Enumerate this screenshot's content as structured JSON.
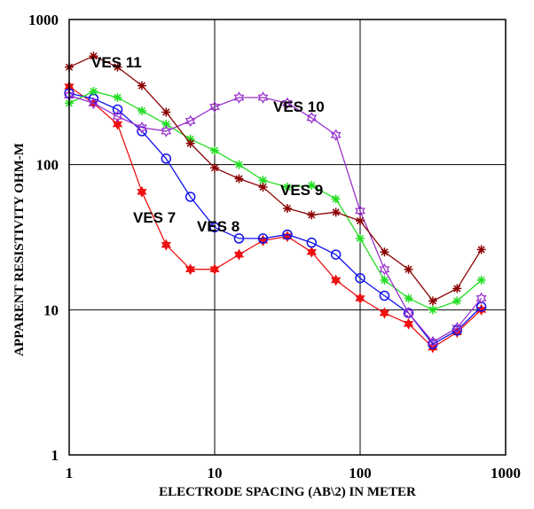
{
  "chart_data": {
    "type": "line",
    "xlabel": "ELECTRODE SPACING (AB\\2) IN METER",
    "ylabel": "APPARENT RESISTIVITY OHM-M",
    "xscale": "log",
    "yscale": "log",
    "xlim": [
      1,
      1000
    ],
    "ylim": [
      1,
      1000
    ],
    "grid": true,
    "x_ticks": [
      "1",
      "10",
      "100",
      "1000"
    ],
    "y_ticks": [
      "1",
      "10",
      "100",
      "1000"
    ],
    "series": [
      {
        "name": "VES 7",
        "color": "#ee1111",
        "marker": "star6",
        "x": [
          1,
          1.47,
          2.15,
          3.16,
          4.64,
          6.81,
          10,
          14.7,
          21.5,
          31.6,
          46.4,
          68.1,
          100,
          147,
          215,
          316,
          464,
          681
        ],
        "y": [
          345,
          265,
          190,
          65,
          28,
          19,
          19,
          24,
          30,
          32,
          25,
          16,
          12,
          9.5,
          8,
          5.5,
          7,
          10
        ]
      },
      {
        "name": "VES 8",
        "color": "#1111ee",
        "marker": "circle",
        "x": [
          1,
          1.47,
          2.15,
          3.16,
          4.64,
          6.81,
          10,
          14.7,
          21.5,
          31.6,
          46.4,
          68.1,
          100,
          147,
          215,
          316,
          464,
          681
        ],
        "y": [
          310,
          285,
          240,
          170,
          110,
          60,
          37,
          31,
          31,
          33,
          29,
          24,
          16.5,
          12.5,
          9.5,
          5.8,
          7.2,
          10.5
        ]
      },
      {
        "name": "VES 9",
        "color": "#22dd22",
        "marker": "asterisk",
        "x": [
          1,
          1.47,
          2.15,
          3.16,
          4.64,
          6.81,
          10,
          14.7,
          21.5,
          31.6,
          46.4,
          68.1,
          100,
          147,
          215,
          316,
          464,
          681
        ],
        "y": [
          265,
          320,
          290,
          235,
          190,
          150,
          125,
          100,
          78,
          70,
          72,
          58,
          31,
          16,
          12,
          10,
          11.5,
          16
        ]
      },
      {
        "name": "VES 10",
        "color": "#9933cc",
        "marker": "star6-open",
        "x": [
          1,
          1.47,
          2.15,
          3.16,
          4.64,
          6.81,
          10,
          14.7,
          21.5,
          31.6,
          46.4,
          68.1,
          100,
          147,
          215,
          316,
          464,
          681
        ],
        "y": [
          300,
          265,
          215,
          180,
          170,
          200,
          250,
          290,
          290,
          265,
          210,
          160,
          48,
          19,
          9.5,
          6,
          7.5,
          12
        ]
      },
      {
        "name": "VES 11",
        "color": "#8b0000",
        "marker": "asterisk",
        "x": [
          1,
          1.47,
          2.15,
          3.16,
          4.64,
          6.81,
          10,
          14.7,
          21.5,
          31.6,
          46.4,
          68.1,
          100,
          147,
          215,
          316,
          464,
          681
        ],
        "y": [
          470,
          560,
          470,
          350,
          230,
          140,
          95,
          80,
          70,
          50,
          45,
          47,
          41,
          25,
          19,
          11.5,
          14,
          26
        ]
      }
    ]
  }
}
